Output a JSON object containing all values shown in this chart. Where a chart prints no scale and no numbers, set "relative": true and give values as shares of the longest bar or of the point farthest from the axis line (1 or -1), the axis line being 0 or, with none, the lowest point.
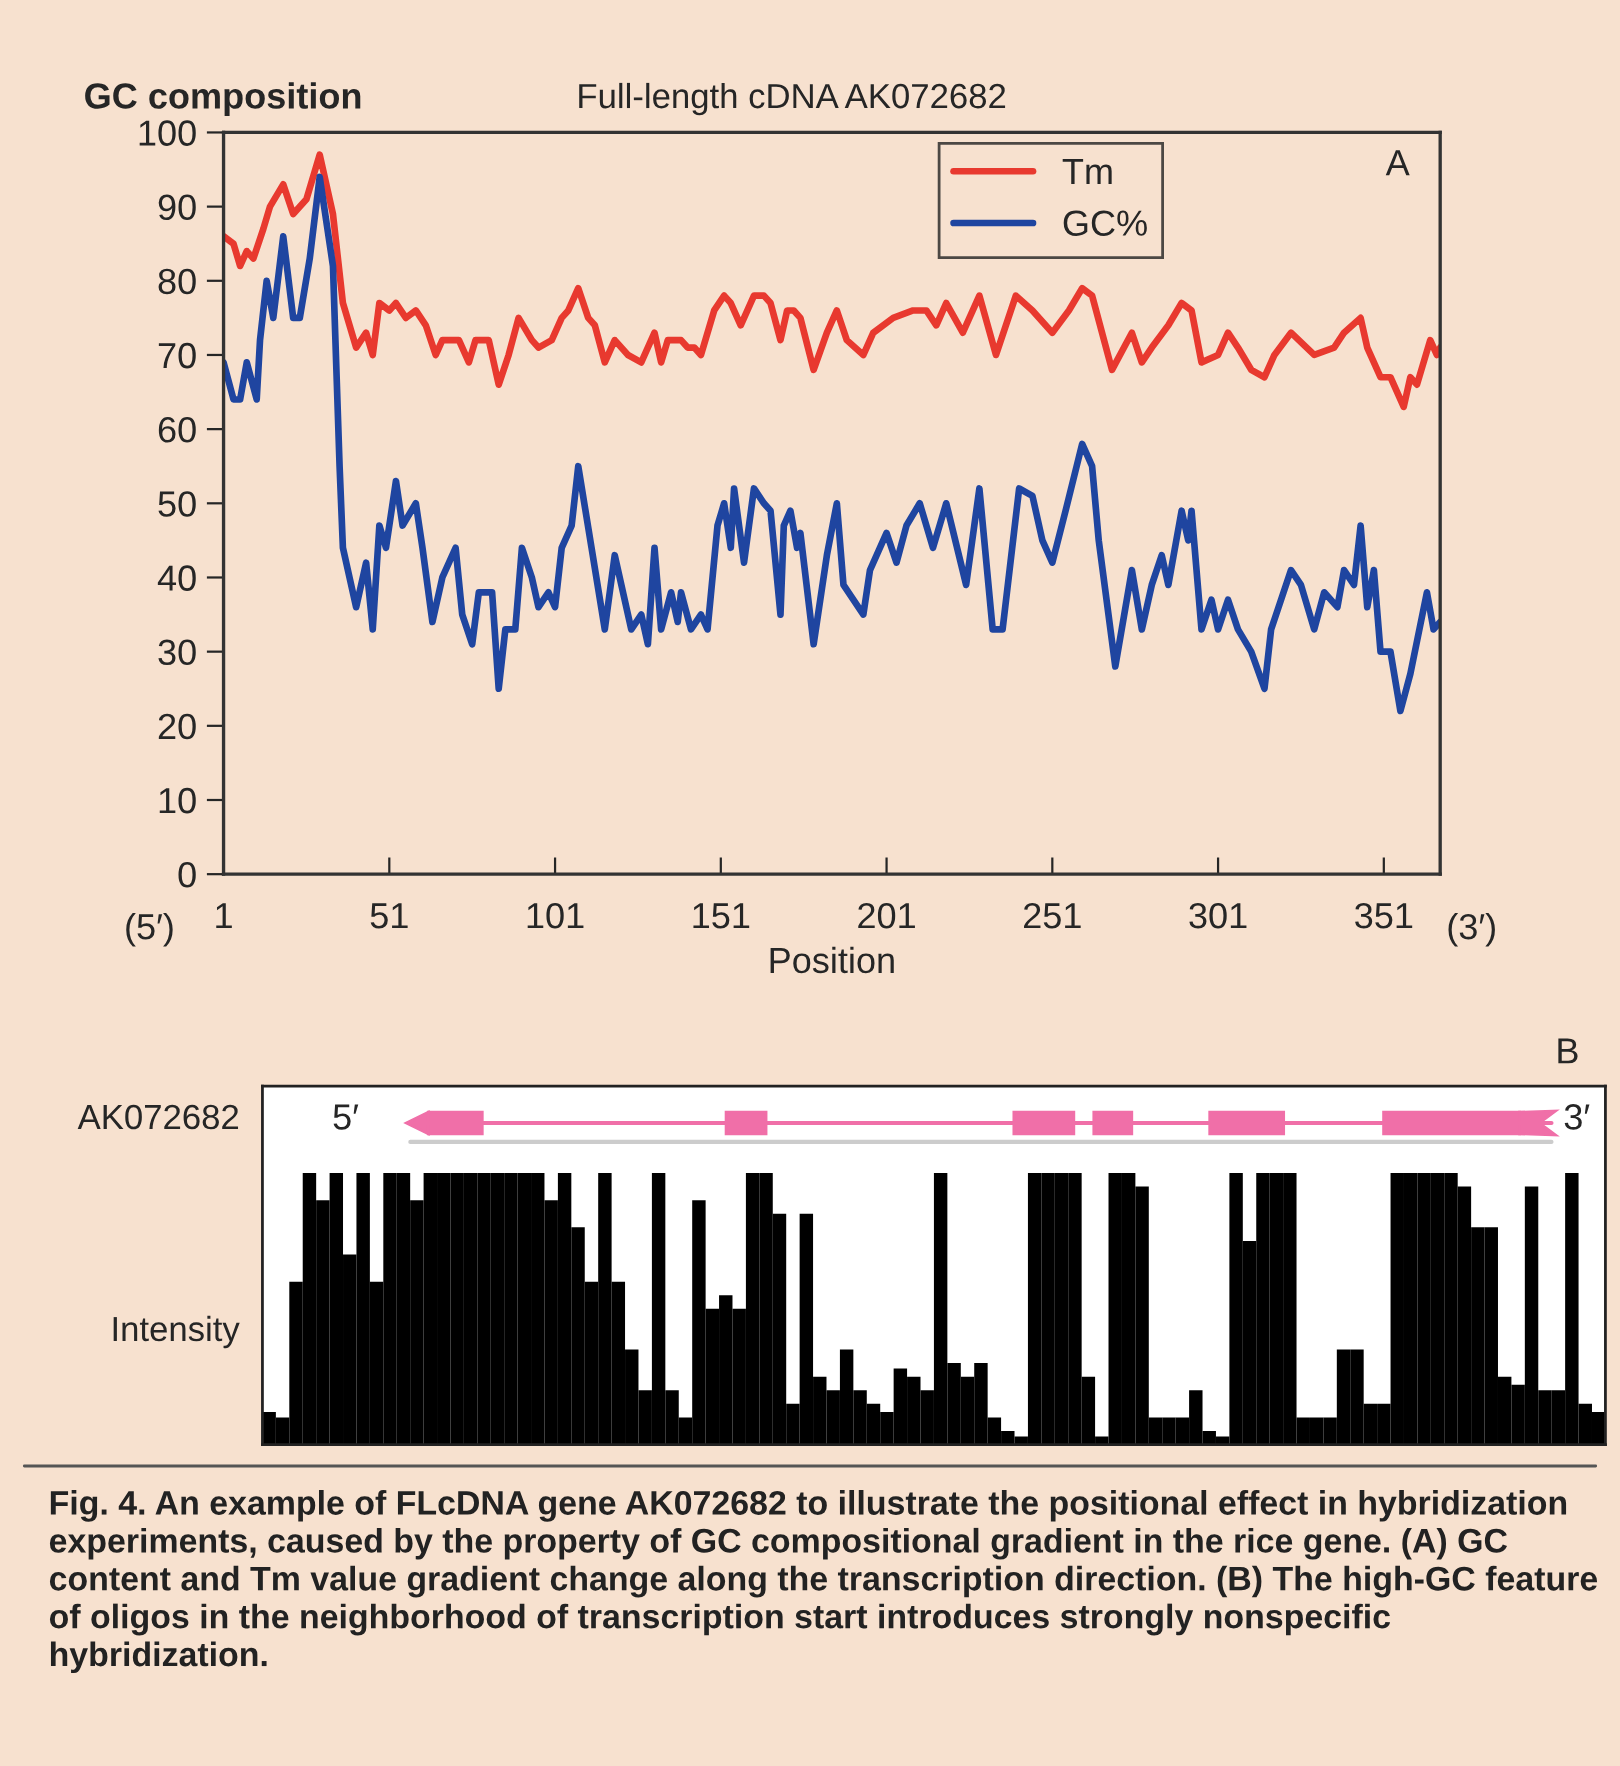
{
  "chart_data": [
    {
      "type": "line",
      "title": "Full-length cDNA AK072682",
      "ylabel": "GC composition",
      "xlabel": "Position",
      "xlim": [
        1,
        368
      ],
      "xticks": [
        1,
        51,
        101,
        151,
        201,
        251,
        301,
        351
      ],
      "ylim": [
        0,
        100
      ],
      "yticks": [
        0,
        10,
        20,
        30,
        40,
        50,
        60,
        70,
        80,
        90,
        100
      ],
      "grid": false,
      "legend": "top",
      "line_style": "solid",
      "marker": "none",
      "annotations": [
        "A",
        "(5′)",
        "(3′)"
      ],
      "series": [
        {
          "name": "Tm",
          "color": "#e8392f",
          "x": [
            1,
            4,
            6,
            8,
            10,
            13,
            15,
            19,
            22,
            26,
            30,
            34,
            37,
            41,
            44,
            46,
            48,
            51,
            53,
            56,
            59,
            62,
            65,
            67,
            72,
            75,
            77,
            81,
            84,
            87,
            90,
            94,
            96,
            100,
            103,
            105,
            108,
            111,
            113,
            116,
            119,
            123,
            127,
            131,
            133,
            135,
            139,
            141,
            143,
            145,
            149,
            152,
            154,
            157,
            161,
            164,
            166,
            169,
            171,
            173,
            175,
            179,
            183,
            186,
            189,
            194,
            197,
            203,
            209,
            213,
            216,
            219,
            224,
            229,
            234,
            240,
            245,
            251,
            256,
            260,
            263,
            269,
            275,
            278,
            281,
            286,
            290,
            293,
            296,
            301,
            304,
            307,
            311,
            315,
            318,
            323,
            330,
            336,
            339,
            344,
            346,
            350,
            353,
            357,
            359,
            361,
            365,
            367,
            368
          ],
          "values": [
            86,
            85,
            82,
            84,
            83,
            87,
            90,
            93,
            89,
            91,
            97,
            89,
            77,
            71,
            73,
            70,
            77,
            76,
            77,
            75,
            76,
            74,
            70,
            72,
            72,
            69,
            72,
            72,
            66,
            70,
            75,
            72,
            71,
            72,
            75,
            76,
            79,
            75,
            74,
            69,
            72,
            70,
            69,
            73,
            69,
            72,
            72,
            71,
            71,
            70,
            76,
            78,
            77,
            74,
            78,
            78,
            77,
            72,
            76,
            76,
            75,
            68,
            73,
            76,
            72,
            70,
            73,
            75,
            76,
            76,
            74,
            77,
            73,
            78,
            70,
            78,
            76,
            73,
            76,
            79,
            78,
            68,
            73,
            69,
            71,
            74,
            77,
            76,
            69,
            70,
            73,
            71,
            68,
            67,
            70,
            73,
            70,
            71,
            73,
            75,
            71,
            67,
            67,
            63,
            67,
            66,
            72,
            70,
            71
          ]
        },
        {
          "name": "GC%",
          "color": "#1f45a0",
          "x": [
            1,
            4,
            6,
            8,
            11,
            12,
            14,
            16,
            19,
            22,
            24,
            27,
            30,
            34,
            36,
            37,
            41,
            44,
            46,
            48,
            50,
            53,
            55,
            59,
            61,
            64,
            67,
            71,
            73,
            76,
            78,
            82,
            84,
            86,
            89,
            91,
            94,
            96,
            99,
            101,
            103,
            106,
            108,
            112,
            116,
            119,
            124,
            127,
            129,
            131,
            133,
            136,
            138,
            139,
            142,
            145,
            147,
            150,
            152,
            154,
            155,
            158,
            161,
            164,
            166,
            169,
            170,
            172,
            174,
            175,
            179,
            183,
            186,
            188,
            194,
            196,
            201,
            204,
            207,
            211,
            215,
            219,
            225,
            229,
            233,
            236,
            241,
            245,
            248,
            251,
            255,
            260,
            263,
            265,
            270,
            275,
            278,
            281,
            284,
            286,
            290,
            292,
            293,
            296,
            299,
            301,
            304,
            307,
            311,
            315,
            317,
            323,
            326,
            330,
            333,
            337,
            339,
            342,
            344,
            346,
            348,
            350,
            353,
            356,
            359,
            364,
            366,
            368
          ],
          "values": [
            69,
            64,
            64,
            69,
            64,
            72,
            80,
            75,
            86,
            75,
            75,
            83,
            94,
            82,
            55,
            44,
            36,
            42,
            33,
            47,
            44,
            53,
            47,
            50,
            44,
            34,
            40,
            44,
            35,
            31,
            38,
            38,
            25,
            33,
            33,
            44,
            40,
            36,
            38,
            36,
            44,
            47,
            55,
            44,
            33,
            43,
            33,
            35,
            31,
            44,
            33,
            38,
            34,
            38,
            33,
            35,
            33,
            47,
            50,
            44,
            52,
            42,
            52,
            50,
            49,
            35,
            47,
            49,
            44,
            46,
            31,
            43,
            50,
            39,
            35,
            41,
            46,
            42,
            47,
            50,
            44,
            50,
            39,
            52,
            33,
            33,
            52,
            51,
            45,
            42,
            49,
            58,
            55,
            45,
            28,
            41,
            33,
            39,
            43,
            39,
            49,
            45,
            49,
            33,
            37,
            33,
            37,
            33,
            30,
            25,
            33,
            41,
            39,
            33,
            38,
            36,
            41,
            39,
            47,
            36,
            41,
            30,
            30,
            22,
            27,
            38,
            33,
            34
          ]
        }
      ]
    },
    {
      "type": "bar",
      "relative": true,
      "ylabel": "Intensity",
      "color": "#000000",
      "categories": [
        null,
        null,
        null,
        null,
        null,
        null,
        null,
        null,
        null,
        null,
        null,
        null,
        null,
        null,
        null,
        null,
        null,
        null,
        null,
        null,
        null,
        null,
        null,
        null,
        null,
        null,
        null,
        null,
        null,
        null,
        null,
        null,
        null,
        null,
        null,
        null,
        null,
        null,
        null,
        null,
        null,
        null,
        null,
        null,
        null,
        null,
        null,
        null,
        null,
        null,
        null,
        null,
        null,
        null,
        null,
        null,
        null,
        null,
        null,
        null,
        null,
        null,
        null,
        null,
        null,
        null,
        null,
        null,
        null,
        null,
        null,
        null,
        null,
        null,
        null,
        null,
        null,
        null,
        null,
        null,
        null,
        null,
        null,
        null,
        null,
        null,
        null,
        null,
        null,
        null,
        null,
        null,
        null,
        null,
        null,
        null,
        null,
        null,
        null,
        null
      ],
      "values": [
        0.12,
        0.1,
        0.6,
        1,
        0.9,
        1,
        0.7,
        1,
        0.6,
        1,
        1,
        0.9,
        1,
        1,
        1,
        1,
        1,
        1,
        1,
        1,
        1,
        0.9,
        1,
        0.8,
        0.6,
        1,
        0.6,
        0.35,
        0.2,
        1,
        0.2,
        0.1,
        0.9,
        0.5,
        0.55,
        0.5,
        1,
        1,
        0.85,
        0.15,
        0.85,
        0.25,
        0.2,
        0.35,
        0.2,
        0.15,
        0.12,
        0.28,
        0.25,
        0.2,
        1,
        0.3,
        0.25,
        0.3,
        0.1,
        0.05,
        0.03,
        1,
        1,
        1,
        1,
        0.25,
        0.03,
        1,
        1,
        0.95,
        0.1,
        0.1,
        0.1,
        0.2,
        0.05,
        0.03,
        1,
        0.75,
        1,
        1,
        1,
        0.1,
        0.1,
        0.1,
        0.35,
        0.35,
        0.15,
        0.15,
        1,
        1,
        1,
        1,
        1,
        0.95,
        0.8,
        0.8,
        0.25,
        0.22,
        0.95,
        0.2,
        0.2,
        1,
        0.15,
        0.12
      ],
      "annotations": [
        "B",
        "AK072682",
        "5′",
        "3′",
        "Fig. 4. An example of FLcDNA gene AK072682 to illustrate the positional effect in hybridization experiments, caused by the property of GC compositional gradient in the rice gene. (A) GC content and Tm value gradient change along the transcription direction. (B) The high-GC feature of oligos in the neighborhood of transcription start introduces strongly nonspecific hybridization."
      ]
    }
  ]
}
